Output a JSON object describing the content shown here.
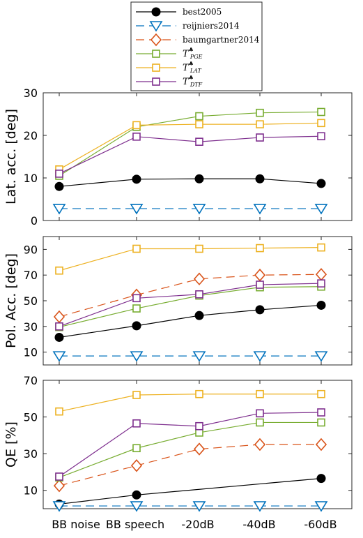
{
  "chart_data": [
    {
      "type": "line",
      "ylabel": "Lat. acc. [deg]",
      "ylim": [
        0,
        30
      ],
      "yticks": [
        "0",
        "10",
        "20",
        "30"
      ],
      "categories": [
        "BB noise",
        "BB speech",
        "-20dB",
        "-40dB",
        "-60dB"
      ],
      "series": [
        {
          "key": "best2005",
          "values": [
            8.0,
            9.7,
            9.8,
            9.8,
            8.7
          ]
        },
        {
          "key": "reijniers2014",
          "values": [
            2.8,
            2.8,
            2.8,
            2.8,
            2.8
          ]
        },
        {
          "key": "tpge",
          "values": [
            10.5,
            22.0,
            24.5,
            25.3,
            25.5
          ]
        },
        {
          "key": "tlat",
          "values": [
            12.0,
            22.4,
            22.6,
            22.6,
            22.9
          ]
        },
        {
          "key": "tdtf",
          "values": [
            11.0,
            19.7,
            18.5,
            19.5,
            19.8
          ]
        }
      ]
    },
    {
      "type": "line",
      "ylabel": "Pol. Acc. [deg]",
      "ylim": [
        0,
        100
      ],
      "yticks": [
        "10",
        "30",
        "50",
        "70",
        "90"
      ],
      "categories": [
        "BB noise",
        "BB speech",
        "-20dB",
        "-40dB",
        "-60dB"
      ],
      "series": [
        {
          "key": "best2005",
          "values": [
            21.5,
            30.5,
            38.5,
            43.0,
            46.5
          ]
        },
        {
          "key": "reijniers2014",
          "values": [
            7.0,
            7.0,
            7.0,
            7.0,
            7.0
          ]
        },
        {
          "key": "baumgartner2014",
          "values": [
            37.5,
            54.5,
            67.0,
            70.0,
            70.5
          ]
        },
        {
          "key": "tpge",
          "values": [
            29.5,
            44.0,
            54.0,
            60.5,
            61.0
          ]
        },
        {
          "key": "tlat",
          "values": [
            73.5,
            90.5,
            90.5,
            91.0,
            91.5
          ]
        },
        {
          "key": "tdtf",
          "values": [
            30.0,
            52.0,
            55.0,
            62.5,
            63.5
          ]
        }
      ]
    },
    {
      "type": "line",
      "ylabel": "QE [%]",
      "ylim": [
        0,
        70
      ],
      "yticks": [
        "10",
        "30",
        "50",
        "70"
      ],
      "categories": [
        "BB noise",
        "BB speech",
        "-20dB",
        "-40dB",
        "-60dB"
      ],
      "series": [
        {
          "key": "best2005",
          "values": [
            2.5,
            7.5,
            null,
            null,
            16.5
          ]
        },
        {
          "key": "reijniers2014",
          "values": [
            1.5,
            1.5,
            1.5,
            1.5,
            1.5
          ]
        },
        {
          "key": "baumgartner2014",
          "values": [
            12.5,
            23.5,
            32.5,
            35.0,
            35.0
          ]
        },
        {
          "key": "tpge",
          "values": [
            17.0,
            33.0,
            41.5,
            47.0,
            47.0
          ]
        },
        {
          "key": "tlat",
          "values": [
            53.0,
            62.0,
            62.5,
            62.5,
            62.5
          ]
        },
        {
          "key": "tdtf",
          "values": [
            17.5,
            46.5,
            45.0,
            52.0,
            52.5
          ]
        }
      ]
    }
  ],
  "styles": {
    "best2005": {
      "color": "#000000",
      "marker": "dot",
      "dash": false
    },
    "reijniers2014": {
      "color": "#0072BD",
      "marker": "triangle-down",
      "dash": true
    },
    "baumgartner2014": {
      "color": "#D95319",
      "marker": "diamond",
      "dash": true
    },
    "tpge": {
      "color": "#77AC30",
      "marker": "square",
      "dash": false
    },
    "tlat": {
      "color": "#EDB120",
      "marker": "square",
      "dash": false
    },
    "tdtf": {
      "color": "#7E2F8E",
      "marker": "square",
      "dash": false
    }
  },
  "legend": [
    {
      "key": "best2005",
      "label": "best2005"
    },
    {
      "key": "reijniers2014",
      "label": "reijniers2014"
    },
    {
      "key": "baumgartner2014",
      "label": "baumgartner2014"
    },
    {
      "key": "tpge",
      "label": "T",
      "sub": "PGE",
      "sup": "♣"
    },
    {
      "key": "tlat",
      "label": "T",
      "sub": "LAT",
      "sup": "♣"
    },
    {
      "key": "tdtf",
      "label": "T",
      "sub": "DTF",
      "sup": "♣"
    }
  ]
}
